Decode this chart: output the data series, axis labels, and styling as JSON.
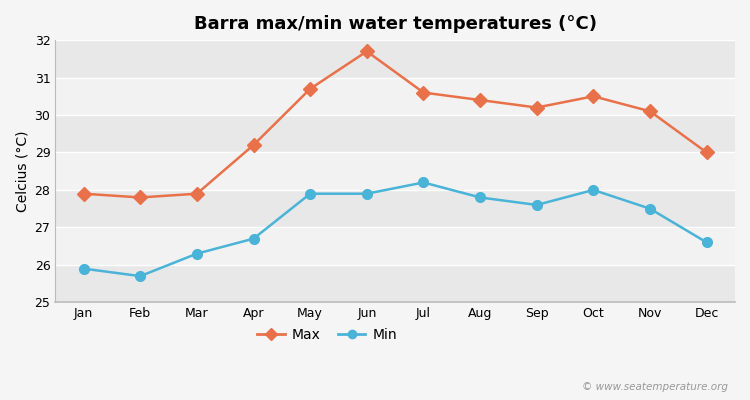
{
  "title": "Barra max/min water temperatures (°C)",
  "ylabel": "Celcius (°C)",
  "months": [
    "Jan",
    "Feb",
    "Mar",
    "Apr",
    "May",
    "Jun",
    "Jul",
    "Aug",
    "Sep",
    "Oct",
    "Nov",
    "Dec"
  ],
  "max_temps": [
    27.9,
    27.8,
    27.9,
    29.2,
    30.7,
    31.7,
    30.6,
    30.4,
    30.2,
    30.5,
    30.1,
    29.0
  ],
  "min_temps": [
    25.9,
    25.7,
    26.3,
    26.7,
    27.9,
    27.9,
    28.2,
    27.8,
    27.6,
    28.0,
    27.5,
    26.6
  ],
  "max_color": "#e8714a",
  "min_color": "#4ab3d8",
  "bg_color": "#f5f5f5",
  "band_colors": [
    "#e8e8e8",
    "#f2f2f2"
  ],
  "ylim": [
    25,
    32
  ],
  "yticks": [
    25,
    26,
    27,
    28,
    29,
    30,
    31,
    32
  ],
  "watermark": "© www.seatemperature.org",
  "legend_max": "Max",
  "legend_min": "Min",
  "title_fontsize": 13,
  "axis_label_fontsize": 10,
  "tick_fontsize": 9,
  "legend_fontsize": 10,
  "markersize": 7,
  "linewidth": 1.8
}
